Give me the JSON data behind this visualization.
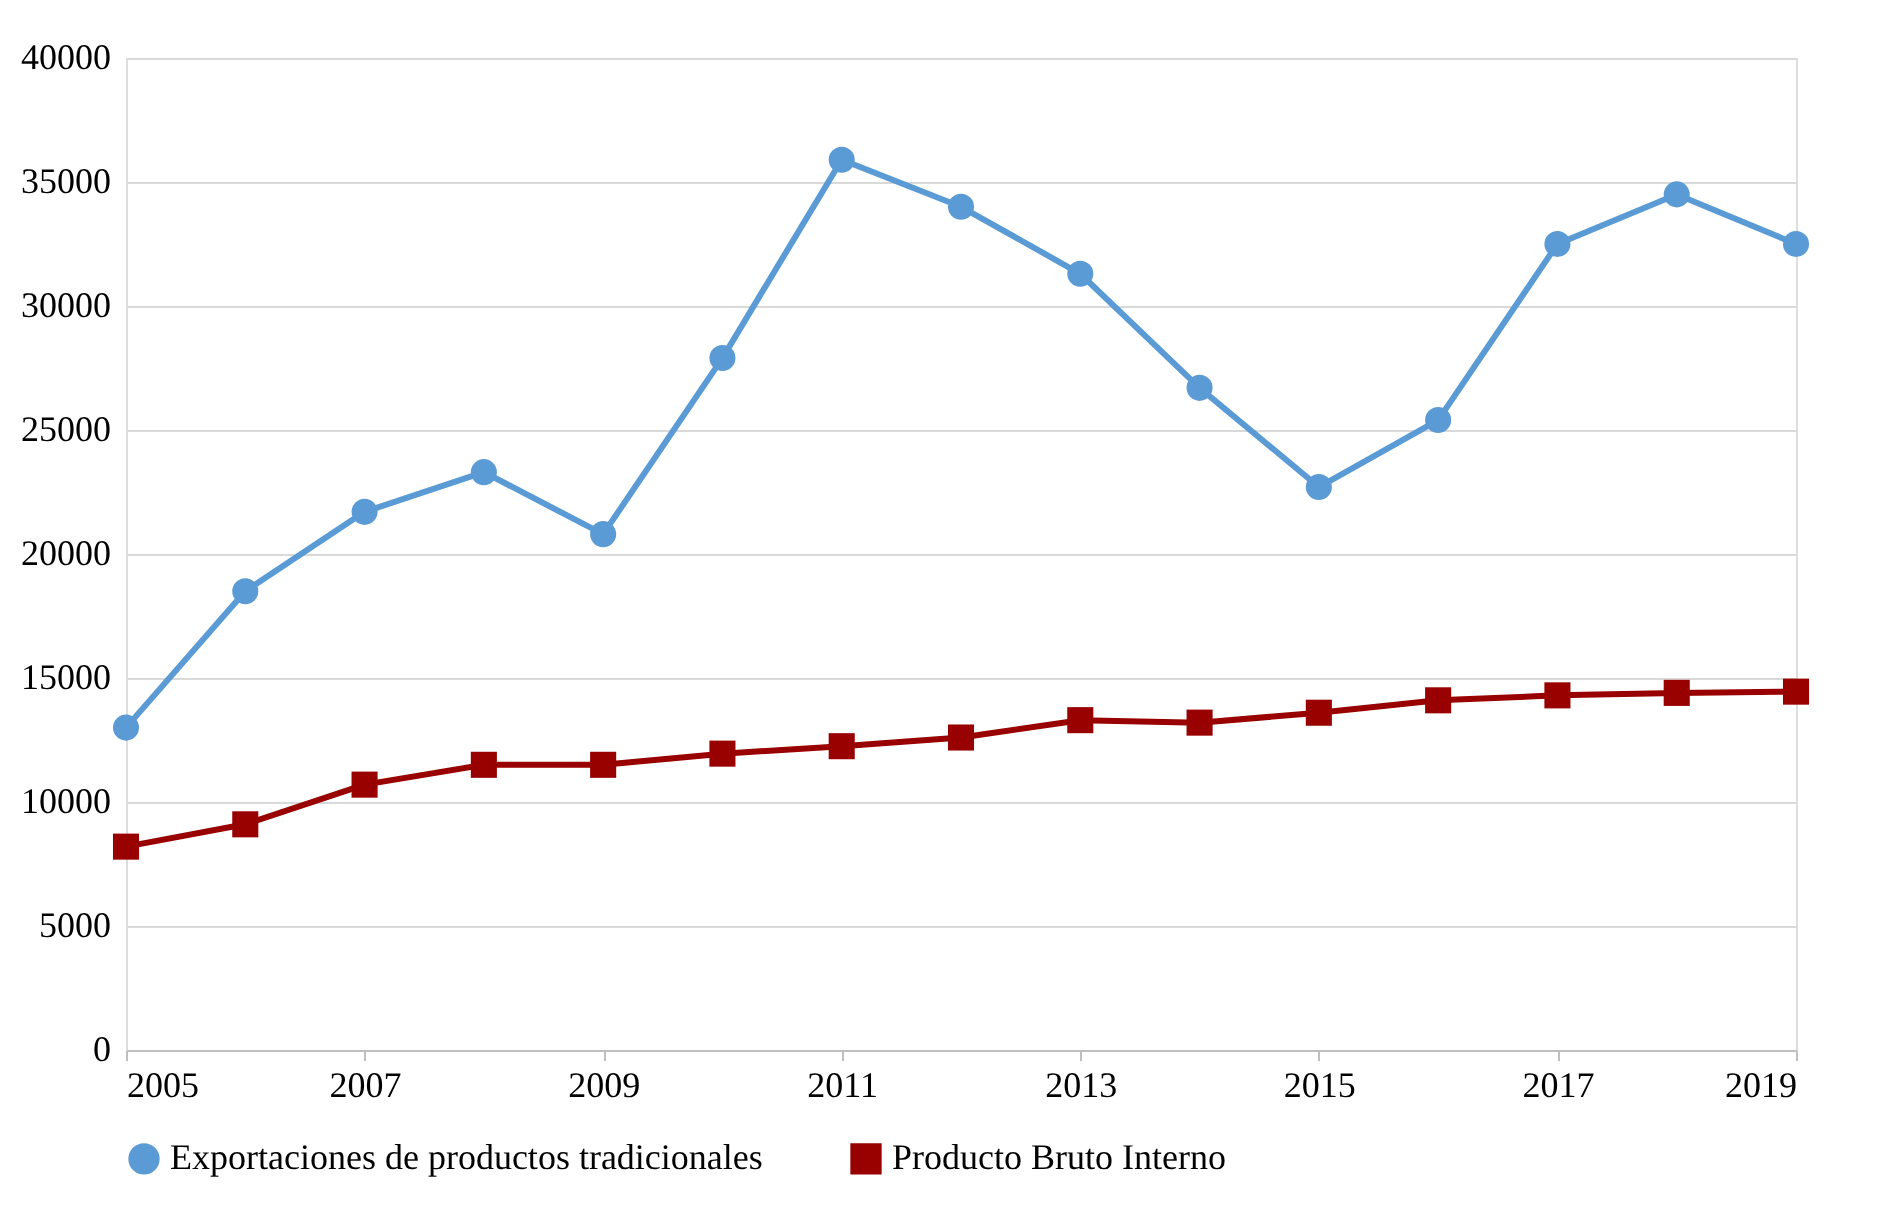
{
  "chart_data": {
    "type": "line",
    "x": [
      2005,
      2006,
      2007,
      2008,
      2009,
      2010,
      2011,
      2012,
      2013,
      2014,
      2015,
      2016,
      2017,
      2018,
      2019
    ],
    "series": [
      {
        "name": "Exportaciones de productos tradicionales",
        "color": "#5b9bd5",
        "marker": "circle",
        "values": [
          13000,
          18500,
          21700,
          23300,
          20800,
          27900,
          35900,
          34000,
          31300,
          26700,
          22700,
          25400,
          32500,
          34500,
          32500
        ]
      },
      {
        "name": "Producto Bruto Interno",
        "color": "#990000",
        "marker": "square",
        "values": [
          8200,
          9100,
          10700,
          11500,
          11500,
          11950,
          12250,
          12600,
          13300,
          13200,
          13600,
          14100,
          14300,
          14400,
          14450
        ]
      }
    ],
    "xlim": [
      2005,
      2019
    ],
    "xticks": [
      2005,
      2007,
      2009,
      2011,
      2013,
      2015,
      2017,
      2019
    ],
    "ylim": [
      0,
      40000
    ],
    "yticks": [
      0,
      5000,
      10000,
      15000,
      20000,
      25000,
      30000,
      35000,
      40000
    ],
    "grid": "y",
    "legend": "bottom",
    "line_style": "solid"
  }
}
